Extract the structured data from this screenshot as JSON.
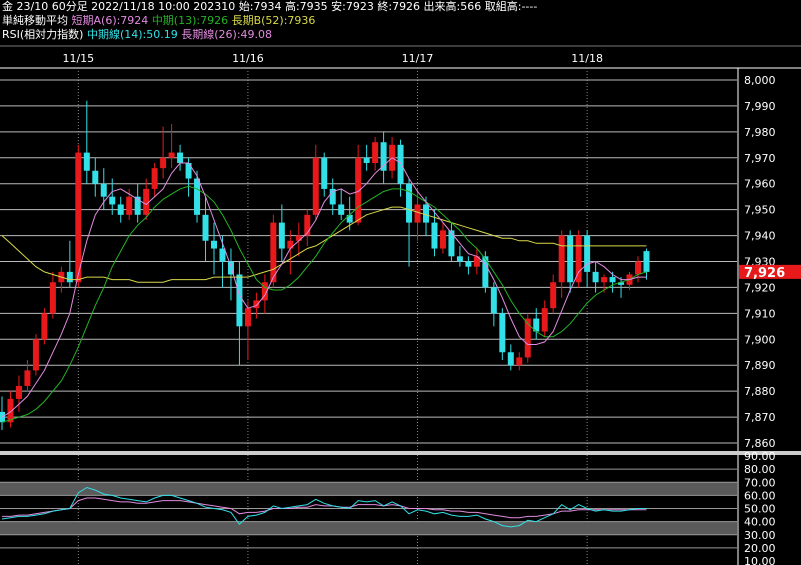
{
  "header": {
    "line1": "金 23/10 60分足 2022/11/18 10:00 202310 始:7934 高:7935 安:7923 終:7926 出来高:566 取組高:----",
    "ma_title": "単純移動平均",
    "ma_short": "短期A(6):7924",
    "ma_mid": "中期(13):7926",
    "ma_long": "長期B(52):7936",
    "rsi_title": "RSI(相対力指数)",
    "rsi_mid": "中期線(14):50.19",
    "rsi_long": "長期線(26):49.08"
  },
  "colors": {
    "background": "#000000",
    "up": "#e8191b",
    "down": "#33e0e8",
    "ma_short": "#e38be0",
    "ma_mid": "#24b324",
    "ma_long": "#d8d84a",
    "rsi_mid": "#33e0e8",
    "rsi_long": "#e38be0",
    "price_tag": "#e8191b"
  },
  "chart_data": {
    "type": "candlestick",
    "x_tick_labels": [
      {
        "label": "11/15",
        "index": 9
      },
      {
        "label": "11/16",
        "index": 29
      },
      {
        "label": "11/17",
        "index": 49
      },
      {
        "label": "11/18",
        "index": 69
      }
    ],
    "ylim": [
      7855,
      8005
    ],
    "y_ticks": [
      7860,
      7870,
      7880,
      7890,
      7900,
      7910,
      7920,
      7930,
      7940,
      7950,
      7960,
      7970,
      7980,
      7990,
      8000
    ],
    "y_tick_labels": [
      "7,860",
      "7,870",
      "7,880",
      "7,890",
      "7,900",
      "7,910",
      "7,920",
      "7,930",
      "7,940",
      "7,950",
      "7,960",
      "7,970",
      "7,980",
      "7,990",
      "8,000"
    ],
    "last_price_label": "7,926",
    "last_price": 7926,
    "candles": [
      [
        7872,
        7878,
        7865,
        7868
      ],
      [
        7868,
        7880,
        7866,
        7877
      ],
      [
        7877,
        7886,
        7872,
        7882
      ],
      [
        7882,
        7892,
        7880,
        7888
      ],
      [
        7888,
        7902,
        7886,
        7900
      ],
      [
        7900,
        7912,
        7898,
        7910
      ],
      [
        7910,
        7926,
        7908,
        7922
      ],
      [
        7922,
        7928,
        7918,
        7926
      ],
      [
        7926,
        7938,
        7920,
        7922
      ],
      [
        7922,
        7975,
        7920,
        7972
      ],
      [
        7972,
        7992,
        7960,
        7965
      ],
      [
        7965,
        7970,
        7955,
        7960
      ],
      [
        7960,
        7966,
        7950,
        7955
      ],
      [
        7955,
        7962,
        7948,
        7952
      ],
      [
        7952,
        7955,
        7945,
        7948
      ],
      [
        7948,
        7958,
        7946,
        7955
      ],
      [
        7955,
        7960,
        7945,
        7948
      ],
      [
        7948,
        7962,
        7946,
        7958
      ],
      [
        7958,
        7968,
        7955,
        7966
      ],
      [
        7966,
        7982,
        7962,
        7970
      ],
      [
        7970,
        7983,
        7966,
        7972
      ],
      [
        7972,
        7975,
        7965,
        7968
      ],
      [
        7968,
        7970,
        7955,
        7962
      ],
      [
        7962,
        7965,
        7945,
        7948
      ],
      [
        7948,
        7955,
        7930,
        7938
      ],
      [
        7938,
        7945,
        7925,
        7935
      ],
      [
        7935,
        7940,
        7920,
        7930
      ],
      [
        7930,
        7935,
        7915,
        7925
      ],
      [
        7925,
        7930,
        7890,
        7905
      ],
      [
        7905,
        7915,
        7892,
        7912
      ],
      [
        7912,
        7918,
        7908,
        7915
      ],
      [
        7915,
        7925,
        7910,
        7922
      ],
      [
        7922,
        7948,
        7920,
        7945
      ],
      [
        7945,
        7952,
        7930,
        7935
      ],
      [
        7935,
        7942,
        7925,
        7938
      ],
      [
        7938,
        7945,
        7932,
        7940
      ],
      [
        7940,
        7950,
        7936,
        7948
      ],
      [
        7948,
        7975,
        7946,
        7970
      ],
      [
        7970,
        7972,
        7955,
        7958
      ],
      [
        7958,
        7962,
        7948,
        7952
      ],
      [
        7952,
        7958,
        7946,
        7948
      ],
      [
        7948,
        7955,
        7942,
        7945
      ],
      [
        7945,
        7975,
        7944,
        7970
      ],
      [
        7970,
        7975,
        7965,
        7968
      ],
      [
        7968,
        7978,
        7965,
        7976
      ],
      [
        7976,
        7980,
        7960,
        7965
      ],
      [
        7965,
        7978,
        7962,
        7975
      ],
      [
        7975,
        7977,
        7955,
        7960
      ],
      [
        7960,
        7962,
        7928,
        7945
      ],
      [
        7945,
        7958,
        7938,
        7952
      ],
      [
        7952,
        7955,
        7940,
        7945
      ],
      [
        7945,
        7950,
        7932,
        7935
      ],
      [
        7935,
        7945,
        7933,
        7942
      ],
      [
        7942,
        7945,
        7930,
        7932
      ],
      [
        7932,
        7936,
        7928,
        7930
      ],
      [
        7930,
        7932,
        7925,
        7928
      ],
      [
        7928,
        7935,
        7925,
        7932
      ],
      [
        7932,
        7934,
        7918,
        7920
      ],
      [
        7920,
        7922,
        7905,
        7910
      ],
      [
        7910,
        7912,
        7892,
        7895
      ],
      [
        7895,
        7898,
        7888,
        7890
      ],
      [
        7890,
        7895,
        7888,
        7893
      ],
      [
        7893,
        7910,
        7891,
        7908
      ],
      [
        7908,
        7912,
        7900,
        7903
      ],
      [
        7903,
        7915,
        7901,
        7912
      ],
      [
        7912,
        7925,
        7910,
        7922
      ],
      [
        7922,
        7942,
        7916,
        7940
      ],
      [
        7940,
        7942,
        7918,
        7922
      ],
      [
        7922,
        7942,
        7920,
        7940
      ],
      [
        7940,
        7942,
        7920,
        7926
      ],
      [
        7926,
        7930,
        7918,
        7922
      ],
      [
        7922,
        7925,
        7918,
        7924
      ],
      [
        7924,
        7926,
        7918,
        7922
      ],
      [
        7922,
        7924,
        7916,
        7921
      ],
      [
        7921,
        7926,
        7919,
        7925
      ],
      [
        7925,
        7932,
        7922,
        7930
      ],
      [
        7934,
        7935,
        7923,
        7926
      ]
    ],
    "ma_short": [
      7870,
      7872,
      7875,
      7878,
      7883,
      7888,
      7895,
      7902,
      7910,
      7925,
      7938,
      7948,
      7953,
      7957,
      7958,
      7956,
      7954,
      7952,
      7955,
      7958,
      7964,
      7968,
      7968,
      7963,
      7955,
      7946,
      7937,
      7928,
      7917,
      7912,
      7913,
      7917,
      7924,
      7929,
      7935,
      7938,
      7941,
      7946,
      7953,
      7957,
      7958,
      7956,
      7957,
      7960,
      7964,
      7967,
      7970,
      7968,
      7962,
      7957,
      7953,
      7949,
      7945,
      7941,
      7937,
      7933,
      7932,
      7929,
      7923,
      7916,
      7908,
      7901,
      7898,
      7898,
      7899,
      7903,
      7911,
      7919,
      7926,
      7929,
      7930,
      7928,
      7925,
      7923,
      7923,
      7924,
      7924
    ],
    "ma_mid": [
      7868,
      7869,
      7870,
      7871,
      7873,
      7876,
      7880,
      7884,
      7890,
      7897,
      7905,
      7913,
      7920,
      7928,
      7934,
      7940,
      7944,
      7947,
      7951,
      7954,
      7956,
      7958,
      7959,
      7958,
      7956,
      7953,
      7948,
      7942,
      7935,
      7929,
      7923,
      7920,
      7919,
      7919,
      7921,
      7924,
      7928,
      7932,
      7937,
      7941,
      7945,
      7948,
      7951,
      7953,
      7955,
      7957,
      7958,
      7958,
      7957,
      7955,
      7953,
      7951,
      7948,
      7945,
      7942,
      7938,
      7935,
      7931,
      7926,
      7921,
      7915,
      7910,
      7906,
      7903,
      7901,
      7901,
      7903,
      7906,
      7910,
      7914,
      7917,
      7919,
      7921,
      7922,
      7923,
      7925,
      7926
    ],
    "ma_long": [
      7940,
      7937,
      7934,
      7931,
      7928,
      7926,
      7925,
      7924,
      7923,
      7923,
      7924,
      7924,
      7924,
      7923,
      7923,
      7923,
      7922,
      7922,
      7922,
      7922,
      7923,
      7923,
      7923,
      7923,
      7923,
      7924,
      7924,
      7924,
      7924,
      7924,
      7925,
      7926,
      7927,
      7929,
      7931,
      7933,
      7935,
      7936,
      7938,
      7940,
      7942,
      7944,
      7946,
      7948,
      7949,
      7950,
      7951,
      7951,
      7950,
      7949,
      7948,
      7947,
      7946,
      7945,
      7944,
      7943,
      7942,
      7941,
      7940,
      7939,
      7939,
      7938,
      7938,
      7937,
      7937,
      7937,
      7936,
      7936,
      7936,
      7936,
      7936,
      7936,
      7936,
      7936,
      7936,
      7936,
      7936
    ],
    "rsi": {
      "ylim": [
        10,
        90
      ],
      "y_ticks": [
        10,
        20,
        30,
        40,
        50,
        60,
        70,
        80,
        90
      ],
      "y_tick_labels": [
        "10.00",
        "20.00",
        "30.00",
        "40.00",
        "50.00",
        "60.00",
        "70.00",
        "80.00",
        "90.00"
      ],
      "bands": [
        [
          30,
          40
        ],
        [
          60,
          70
        ]
      ],
      "mid": [
        42,
        43,
        44,
        44,
        45,
        46,
        48,
        49,
        50,
        62,
        66,
        64,
        61,
        60,
        58,
        57,
        56,
        55,
        58,
        60,
        60,
        58,
        56,
        54,
        51,
        50,
        49,
        47,
        38,
        44,
        45,
        47,
        52,
        50,
        51,
        52,
        53,
        57,
        54,
        52,
        51,
        50,
        56,
        55,
        56,
        52,
        55,
        52,
        46,
        49,
        48,
        46,
        47,
        45,
        44,
        44,
        45,
        42,
        40,
        37,
        36,
        37,
        41,
        40,
        43,
        46,
        53,
        49,
        53,
        50,
        48,
        49,
        48,
        48,
        49,
        50,
        50
      ],
      "long": [
        44,
        44,
        45,
        45,
        46,
        47,
        48,
        49,
        50,
        56,
        58,
        58,
        57,
        56,
        55,
        55,
        54,
        54,
        55,
        56,
        56,
        56,
        55,
        54,
        53,
        52,
        51,
        50,
        46,
        47,
        47,
        48,
        50,
        50,
        50,
        51,
        51,
        53,
        52,
        52,
        51,
        51,
        53,
        53,
        53,
        52,
        53,
        52,
        50,
        50,
        50,
        49,
        49,
        48,
        48,
        47,
        47,
        46,
        45,
        44,
        43,
        43,
        44,
        44,
        45,
        46,
        48,
        48,
        49,
        49,
        49,
        49,
        49,
        49,
        49,
        49,
        49
      ]
    }
  }
}
